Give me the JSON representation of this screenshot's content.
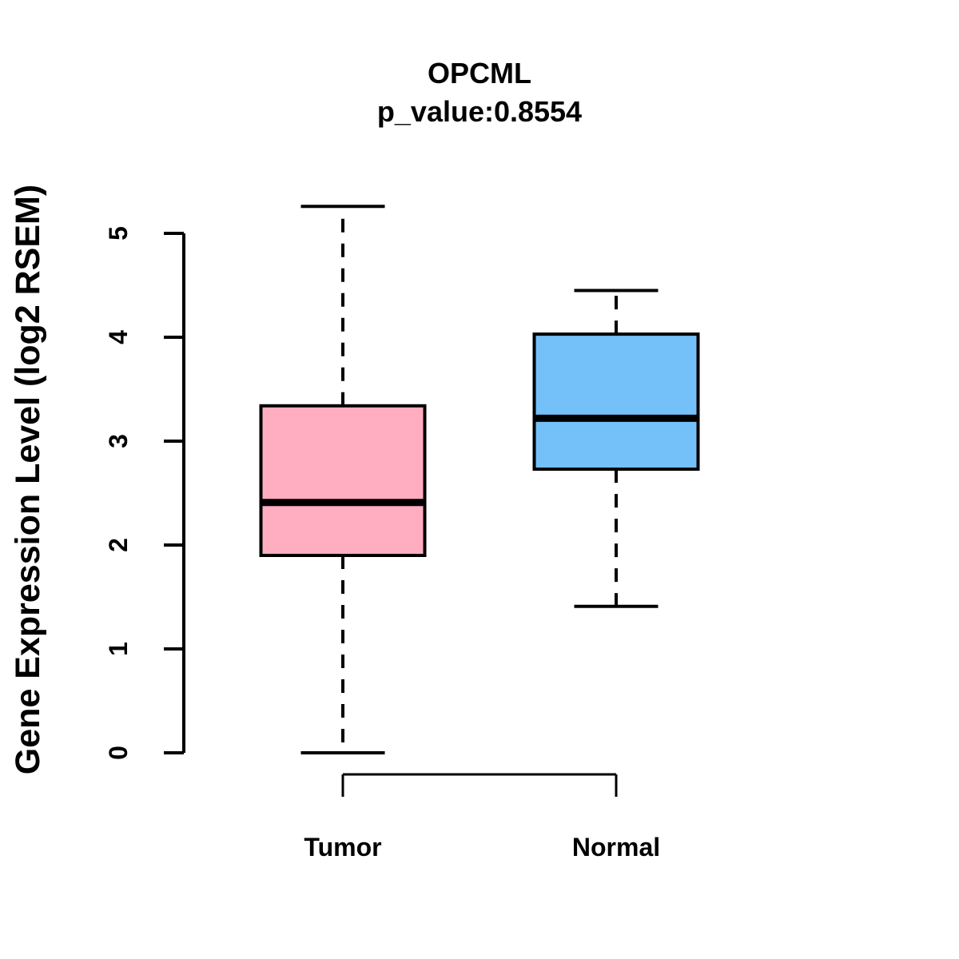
{
  "chart_data": {
    "type": "boxplot",
    "title": "OPCML",
    "subtitle": "p_value:0.8554",
    "ylabel": "Gene Expression Level (log2 RSEM)",
    "xlabel": "",
    "categories": [
      "Tumor",
      "Normal"
    ],
    "series": [
      {
        "name": "Tumor",
        "whisker_low": 0.0,
        "q1": 1.9,
        "median": 2.41,
        "q3": 3.34,
        "whisker_high": 5.26,
        "color": "#FFAEC2"
      },
      {
        "name": "Normal",
        "whisker_low": 1.41,
        "q1": 2.73,
        "median": 3.22,
        "q3": 4.03,
        "whisker_high": 4.45,
        "color": "#74C0F9"
      }
    ],
    "ylim": [
      0,
      5
    ],
    "yticks": [
      0,
      1,
      2,
      3,
      4,
      5
    ],
    "grid": false,
    "legend": false,
    "axis_color": "#000000",
    "median_color": "#000000",
    "background": "#FFFFFF"
  }
}
